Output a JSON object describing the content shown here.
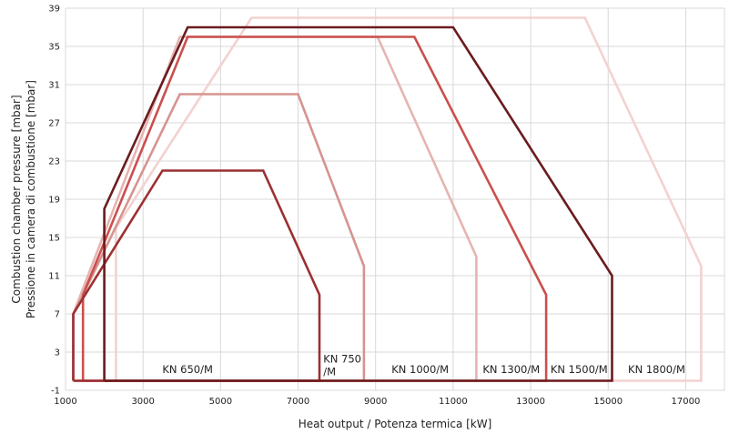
{
  "chart_data": {
    "type": "line",
    "xlabel": "Heat output / Potenza termica [kW]",
    "ylabel": [
      "Combustion chamber pressure [mbar]",
      "Pressione in camera di combustione [mbar]"
    ],
    "xlim": [
      1000,
      18000
    ],
    "ylim": [
      -1,
      39
    ],
    "x_ticks": [
      1000,
      3000,
      5000,
      7000,
      9000,
      11000,
      13000,
      15000,
      17000
    ],
    "y_ticks": [
      -1,
      3,
      7,
      11,
      15,
      19,
      23,
      27,
      31,
      35,
      39
    ],
    "grid": true,
    "series": [
      {
        "name": "KN 1800/M",
        "color": "#f2d2d0",
        "label": [
          "KN 1800/M"
        ],
        "points": [
          [
            2300,
            0
          ],
          [
            2300,
            16
          ],
          [
            5800,
            38
          ],
          [
            14400,
            38
          ],
          [
            17400,
            12
          ],
          [
            17400,
            0
          ]
        ]
      },
      {
        "name": "KN 1000/M",
        "color": "#e6b4b2",
        "label": [
          "KN 1000/M"
        ],
        "points": [
          [
            1200,
            0
          ],
          [
            1200,
            7
          ],
          [
            3950,
            36
          ],
          [
            9050,
            36
          ],
          [
            11600,
            13
          ],
          [
            11600,
            0
          ]
        ]
      },
      {
        "name": "KN 750/M",
        "color": "#d6938f",
        "label": [
          "KN 750",
          "/M"
        ],
        "points": [
          [
            1200,
            0
          ],
          [
            1200,
            7
          ],
          [
            1450,
            9
          ],
          [
            3950,
            30
          ],
          [
            7000,
            30
          ],
          [
            8700,
            12
          ],
          [
            8700,
            0
          ]
        ]
      },
      {
        "name": "KN 1300/M",
        "color": "#c9504e",
        "label": [
          "KN 1300/M"
        ],
        "points": [
          [
            1450,
            0
          ],
          [
            1450,
            7
          ],
          [
            1450,
            9
          ],
          [
            4150,
            36
          ],
          [
            10000,
            36
          ],
          [
            13400,
            9
          ],
          [
            13400,
            0
          ]
        ]
      },
      {
        "name": "KN 650/M",
        "color": "#9b3032",
        "label": [
          "KN 650/M"
        ],
        "points": [
          [
            1200,
            0
          ],
          [
            1200,
            7
          ],
          [
            3500,
            22
          ],
          [
            6100,
            22
          ],
          [
            7550,
            9
          ],
          [
            7550,
            0
          ]
        ]
      },
      {
        "name": "KN 1500/M",
        "color": "#6a1c1f",
        "label": [
          "KN 1500/M"
        ],
        "points": [
          [
            2000,
            0
          ],
          [
            2000,
            18
          ],
          [
            4150,
            37
          ],
          [
            11000,
            37
          ],
          [
            15100,
            11
          ],
          [
            15100,
            0
          ]
        ]
      }
    ]
  }
}
